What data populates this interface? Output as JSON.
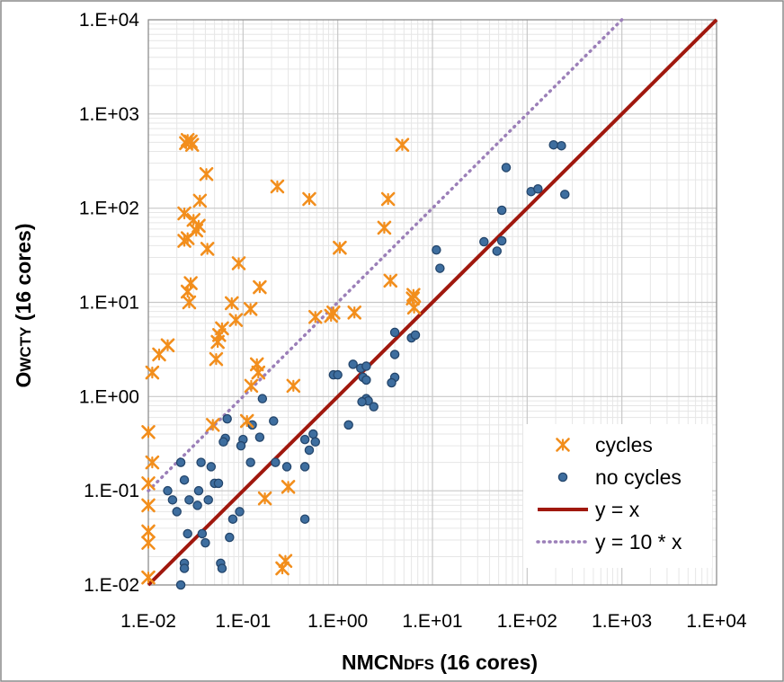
{
  "chart_data": {
    "type": "scatter",
    "title": "",
    "xlabel": {
      "main": "NMCN",
      "sub": "DFS",
      "rest": " (16 cores)"
    },
    "ylabel": {
      "main": "O",
      "sub": "WCTY",
      "rest": " (16 cores)"
    },
    "x_scale": "log",
    "y_scale": "log",
    "xlim": [
      0.01,
      10000
    ],
    "ylim": [
      0.01,
      10000
    ],
    "x_ticks": [
      0.01,
      0.1,
      1,
      10,
      100,
      1000,
      10000
    ],
    "y_ticks": [
      0.01,
      0.1,
      1,
      10,
      100,
      1000,
      10000
    ],
    "x_tick_labels": [
      "1.E-02",
      "1.E-01",
      "1.E+00",
      "1.E+01",
      "1.E+02",
      "1.E+03",
      "1.E+04"
    ],
    "y_tick_labels": [
      "1.E-02",
      "1.E-01",
      "1.E+00",
      "1.E+01",
      "1.E+02",
      "1.E+03",
      "1.E+04"
    ],
    "grid": true,
    "legend_position": "bottom-right",
    "colors": {
      "cycles": "#F28E1C",
      "no_cycles": "#3E6E9F",
      "no_cycles_edge": "#24466C",
      "y_eq_x": "#A0180E",
      "y_eq_10x": "#9B7FB8",
      "grid": "#D9D9D9"
    },
    "series": [
      {
        "name": "cycles",
        "marker": "asterisk",
        "points": [
          [
            0.026,
            530
          ],
          [
            0.028,
            510
          ],
          [
            0.025,
            490
          ],
          [
            0.029,
            470
          ],
          [
            0.041,
            230
          ],
          [
            0.035,
            120
          ],
          [
            0.024,
            88
          ],
          [
            0.03,
            75
          ],
          [
            0.034,
            65
          ],
          [
            0.032,
            58
          ],
          [
            0.026,
            48
          ],
          [
            0.024,
            45
          ],
          [
            0.042,
            37
          ],
          [
            0.09,
            26
          ],
          [
            0.028,
            16
          ],
          [
            0.026,
            13
          ],
          [
            0.15,
            14.5
          ],
          [
            0.027,
            10
          ],
          [
            0.076,
            9.8
          ],
          [
            0.12,
            8.5
          ],
          [
            0.084,
            6.5
          ],
          [
            0.06,
            5.3
          ],
          [
            0.056,
            4.5
          ],
          [
            0.054,
            3.8
          ],
          [
            0.052,
            2.5
          ],
          [
            0.23,
            170
          ],
          [
            0.5,
            125
          ],
          [
            4.8,
            470
          ],
          [
            3.4,
            125
          ],
          [
            1.05,
            38
          ],
          [
            3.1,
            62
          ],
          [
            3.6,
            17
          ],
          [
            6.3,
            12
          ],
          [
            6.2,
            11
          ],
          [
            6.4,
            8.8
          ],
          [
            0.58,
            7.0
          ],
          [
            0.9,
            7.8
          ],
          [
            0.85,
            7.2
          ],
          [
            1.5,
            7.8
          ],
          [
            0.14,
            2.2
          ],
          [
            0.145,
            1.8
          ],
          [
            0.122,
            1.3
          ],
          [
            0.34,
            1.3
          ],
          [
            0.11,
            0.55
          ],
          [
            0.28,
            0.018
          ],
          [
            0.26,
            0.015
          ],
          [
            0.17,
            0.083
          ],
          [
            0.3,
            0.11
          ],
          [
            0.048,
            0.5
          ],
          [
            0.016,
            3.5
          ],
          [
            0.013,
            2.8
          ],
          [
            0.011,
            1.8
          ],
          [
            0.01,
            0.42
          ],
          [
            0.011,
            0.2
          ],
          [
            0.01,
            0.12
          ],
          [
            0.01,
            0.07
          ],
          [
            0.01,
            0.037
          ],
          [
            0.01,
            0.028
          ],
          [
            0.01,
            0.012
          ]
        ]
      },
      {
        "name": "no cycles",
        "marker": "circle",
        "points": [
          [
            60,
            270
          ],
          [
            190,
            470
          ],
          [
            230,
            460
          ],
          [
            110,
            150
          ],
          [
            130,
            160
          ],
          [
            250,
            140
          ],
          [
            54,
            95
          ],
          [
            35,
            44
          ],
          [
            54,
            45
          ],
          [
            48,
            35
          ],
          [
            11,
            36
          ],
          [
            12,
            23
          ],
          [
            4.0,
            4.8
          ],
          [
            6.0,
            4.2
          ],
          [
            6.6,
            4.5
          ],
          [
            4.0,
            1.6
          ],
          [
            3.7,
            1.4
          ],
          [
            4.0,
            2.8
          ],
          [
            1.45,
            2.2
          ],
          [
            1.75,
            2.0
          ],
          [
            2.0,
            2.1
          ],
          [
            1.85,
            1.6
          ],
          [
            2.0,
            1.5
          ],
          [
            0.9,
            1.7
          ],
          [
            1.0,
            1.7
          ],
          [
            2.0,
            0.95
          ],
          [
            2.1,
            0.9
          ],
          [
            2.4,
            0.78
          ],
          [
            1.8,
            0.88
          ],
          [
            1.3,
            0.5
          ],
          [
            0.55,
            0.4
          ],
          [
            0.58,
            0.33
          ],
          [
            0.45,
            0.35
          ],
          [
            0.5,
            0.27
          ],
          [
            0.45,
            0.18
          ],
          [
            0.45,
            0.05
          ],
          [
            0.21,
            0.55
          ],
          [
            0.22,
            0.2
          ],
          [
            0.16,
            0.95
          ],
          [
            0.125,
            0.5
          ],
          [
            0.15,
            0.37
          ],
          [
            0.12,
            0.2
          ],
          [
            0.1,
            0.35
          ],
          [
            0.095,
            0.3
          ],
          [
            0.068,
            0.58
          ],
          [
            0.065,
            0.36
          ],
          [
            0.092,
            0.06
          ],
          [
            0.078,
            0.05
          ],
          [
            0.072,
            0.032
          ],
          [
            0.058,
            0.017
          ],
          [
            0.06,
            0.015
          ],
          [
            0.046,
            0.18
          ],
          [
            0.05,
            0.12
          ],
          [
            0.043,
            0.08
          ],
          [
            0.037,
            0.035
          ],
          [
            0.04,
            0.028
          ],
          [
            0.026,
            0.035
          ],
          [
            0.024,
            0.017
          ],
          [
            0.024,
            0.015
          ],
          [
            0.022,
            0.01
          ],
          [
            0.033,
            0.07
          ],
          [
            0.036,
            0.2
          ],
          [
            0.022,
            0.2
          ],
          [
            0.018,
            0.08
          ],
          [
            0.02,
            0.06
          ],
          [
            0.016,
            0.1
          ],
          [
            0.027,
            0.08
          ],
          [
            0.024,
            0.13
          ],
          [
            0.034,
            0.1
          ],
          [
            0.062,
            0.33
          ],
          [
            0.055,
            0.12
          ],
          [
            0.29,
            0.18
          ]
        ]
      },
      {
        "name": "y = x",
        "type": "line",
        "style": "solid",
        "x": [
          0.01,
          10000
        ],
        "y": [
          0.01,
          10000
        ]
      },
      {
        "name": "y = 10 * x",
        "type": "line",
        "style": "dotted",
        "x": [
          0.01,
          1000
        ],
        "y": [
          0.1,
          10000
        ]
      }
    ]
  }
}
